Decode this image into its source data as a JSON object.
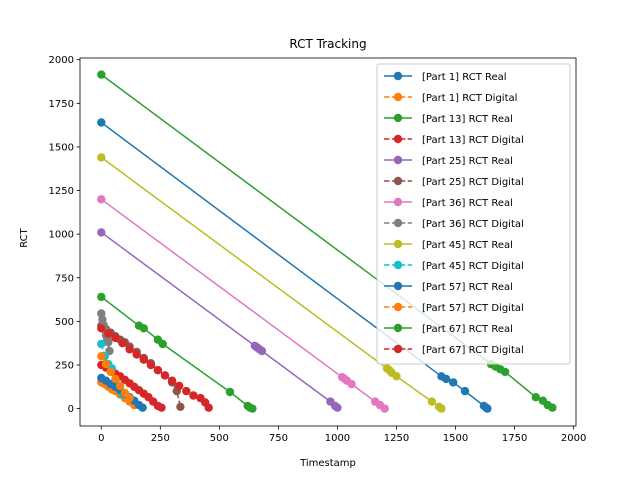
{
  "chart_data": {
    "type": "line",
    "title": "RCT Tracking",
    "xlabel": "Timestamp",
    "ylabel": "RCT",
    "xlim": [
      -90,
      2010
    ],
    "ylim": [
      -100,
      2010
    ],
    "xticks": [
      0,
      250,
      500,
      750,
      1000,
      1250,
      1500,
      1750,
      2000
    ],
    "yticks": [
      0,
      250,
      500,
      750,
      1000,
      1250,
      1500,
      1750,
      2000
    ],
    "grid": false,
    "legend_position": "upper-right",
    "series": [
      {
        "name": "[Part 1] RCT Real",
        "color": "#1f77b4",
        "style": "solid",
        "x": [
          0,
          1440,
          1460,
          1490,
          1540,
          1620,
          1630,
          1635
        ],
        "y": [
          1640,
          185,
          170,
          150,
          100,
          15,
          5,
          0
        ]
      },
      {
        "name": "[Part 1] RCT Digital",
        "color": "#ff7f0e",
        "style": "dashed",
        "x": [
          0,
          15,
          30,
          45,
          60,
          80,
          100,
          120,
          140
        ],
        "y": [
          150,
          140,
          125,
          110,
          100,
          80,
          60,
          40,
          20
        ]
      },
      {
        "name": "[Part 13] RCT Real",
        "color": "#2ca02c",
        "style": "solid",
        "x": [
          0,
          1650,
          1670,
          1690,
          1710,
          1840,
          1870,
          1890,
          1910
        ],
        "y": [
          1915,
          255,
          240,
          225,
          210,
          65,
          45,
          20,
          5
        ]
      },
      {
        "name": "[Part 13] RCT Digital",
        "color": "#d62728",
        "style": "dashed",
        "x": [
          0,
          20,
          40,
          60,
          80,
          100,
          120,
          140,
          160,
          180,
          200,
          220,
          240,
          255
        ],
        "y": [
          250,
          235,
          220,
          200,
          185,
          165,
          145,
          125,
          105,
          85,
          65,
          40,
          15,
          5
        ]
      },
      {
        "name": "[Part 25] RCT Real",
        "color": "#9467bd",
        "style": "solid",
        "x": [
          0,
          650,
          660,
          670,
          680,
          970,
          990,
          1000
        ],
        "y": [
          1010,
          360,
          350,
          340,
          330,
          40,
          15,
          5
        ]
      },
      {
        "name": "[Part 25] RCT Digital",
        "color": "#8c564b",
        "style": "dashed",
        "x": [
          0,
          20,
          40,
          60,
          80,
          100,
          120,
          150,
          180,
          210,
          240,
          270,
          300,
          320,
          335
        ],
        "y": [
          475,
          455,
          435,
          415,
          395,
          380,
          355,
          325,
          290,
          260,
          220,
          190,
          150,
          100,
          10
        ]
      },
      {
        "name": "[Part 36] RCT Real",
        "color": "#e377c2",
        "style": "solid",
        "x": [
          0,
          1020,
          1030,
          1040,
          1060,
          1160,
          1180,
          1200
        ],
        "y": [
          1200,
          180,
          170,
          160,
          140,
          40,
          20,
          0
        ]
      },
      {
        "name": "[Part 36] RCT Digital",
        "color": "#7f7f7f",
        "style": "dashed",
        "x": [
          0,
          5,
          10,
          15,
          20,
          25,
          30,
          35
        ],
        "y": [
          545,
          510,
          480,
          450,
          420,
          400,
          380,
          330
        ]
      },
      {
        "name": "[Part 45] RCT Real",
        "color": "#bcbd22",
        "style": "solid",
        "x": [
          0,
          1210,
          1220,
          1230,
          1250,
          1400,
          1430,
          1440
        ],
        "y": [
          1440,
          230,
          220,
          205,
          185,
          40,
          10,
          0
        ]
      },
      {
        "name": "[Part 45] RCT Digital",
        "color": "#17becf",
        "style": "dashed",
        "x": [
          0,
          15,
          30,
          45,
          60,
          75,
          90
        ],
        "y": [
          370,
          300,
          255,
          230,
          160,
          120,
          80
        ]
      },
      {
        "name": "[Part 57] RCT Real",
        "color": "#1f77b4",
        "style": "solid",
        "x": [
          0,
          20,
          40,
          60,
          80,
          100,
          120,
          140,
          160,
          175
        ],
        "y": [
          175,
          160,
          140,
          125,
          105,
          85,
          65,
          45,
          20,
          5
        ]
      },
      {
        "name": "[Part 57] RCT Digital",
        "color": "#ff7f0e",
        "style": "dashed",
        "x": [
          0,
          20,
          40,
          60,
          80,
          100,
          120
        ],
        "y": [
          300,
          255,
          210,
          170,
          130,
          90,
          60
        ]
      },
      {
        "name": "[Part 67] RCT Real",
        "color": "#2ca02c",
        "style": "solid",
        "x": [
          0,
          160,
          180,
          240,
          260,
          545,
          620,
          630,
          640
        ],
        "y": [
          640,
          475,
          460,
          395,
          370,
          95,
          15,
          5,
          0
        ]
      },
      {
        "name": "[Part 67] RCT Digital",
        "color": "#d62728",
        "style": "dashed",
        "x": [
          0,
          30,
          60,
          90,
          120,
          150,
          180,
          210,
          240,
          270,
          300,
          330,
          360,
          390,
          420,
          440,
          455
        ],
        "y": [
          460,
          430,
          405,
          375,
          340,
          310,
          280,
          250,
          220,
          190,
          160,
          130,
          100,
          75,
          60,
          35,
          5
        ]
      }
    ]
  }
}
